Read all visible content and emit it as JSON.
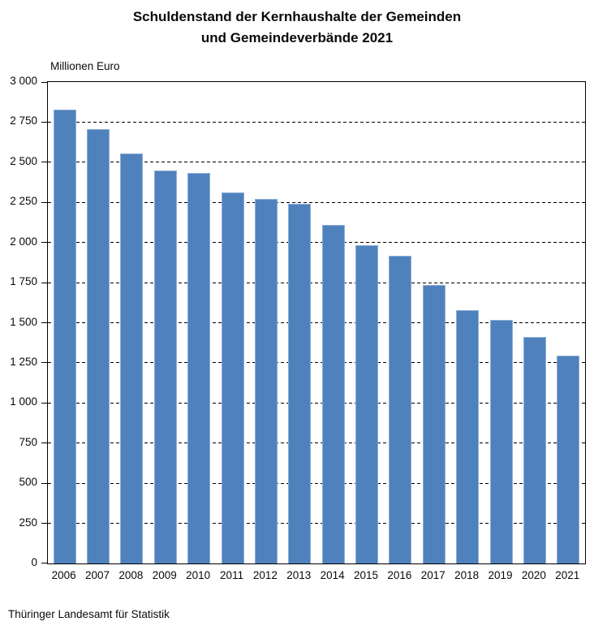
{
  "title": {
    "line1": "Schuldenstand der Kernhaushalte der Gemeinden",
    "line2": "und Gemeindeverbände 2021"
  },
  "y_unit_label": "Millionen Euro",
  "source": "Thüringer Landesamt für Statistik",
  "colors": {
    "bar_fill": "#4F81BD",
    "bar_border": "#8FAFD6",
    "axis": "#000000",
    "grid": "#000000",
    "background": "#FFFFFF"
  },
  "chart_data": {
    "type": "bar",
    "title": "Schuldenstand der Kernhaushalte der Gemeinden und Gemeindeverbände 2021",
    "xlabel": "",
    "ylabel": "Millionen Euro",
    "categories": [
      "2006",
      "2007",
      "2008",
      "2009",
      "2010",
      "2011",
      "2012",
      "2013",
      "2014",
      "2015",
      "2016",
      "2017",
      "2018",
      "2019",
      "2020",
      "2021"
    ],
    "values": [
      2826,
      2709,
      2556,
      2448,
      2432,
      2311,
      2273,
      2242,
      2110,
      1984,
      1916,
      1736,
      1581,
      1516,
      1411,
      1296
    ],
    "ylim": [
      0,
      3000
    ],
    "ytick_step": 250,
    "ytick_labels": [
      "0",
      "250",
      "500",
      "750",
      "1 000",
      "1 250",
      "1 500",
      "1 750",
      "2 000",
      "2 250",
      "2 500",
      "2 750",
      "3 000"
    ],
    "grid": "horizontal-dashed",
    "legend": "none"
  }
}
